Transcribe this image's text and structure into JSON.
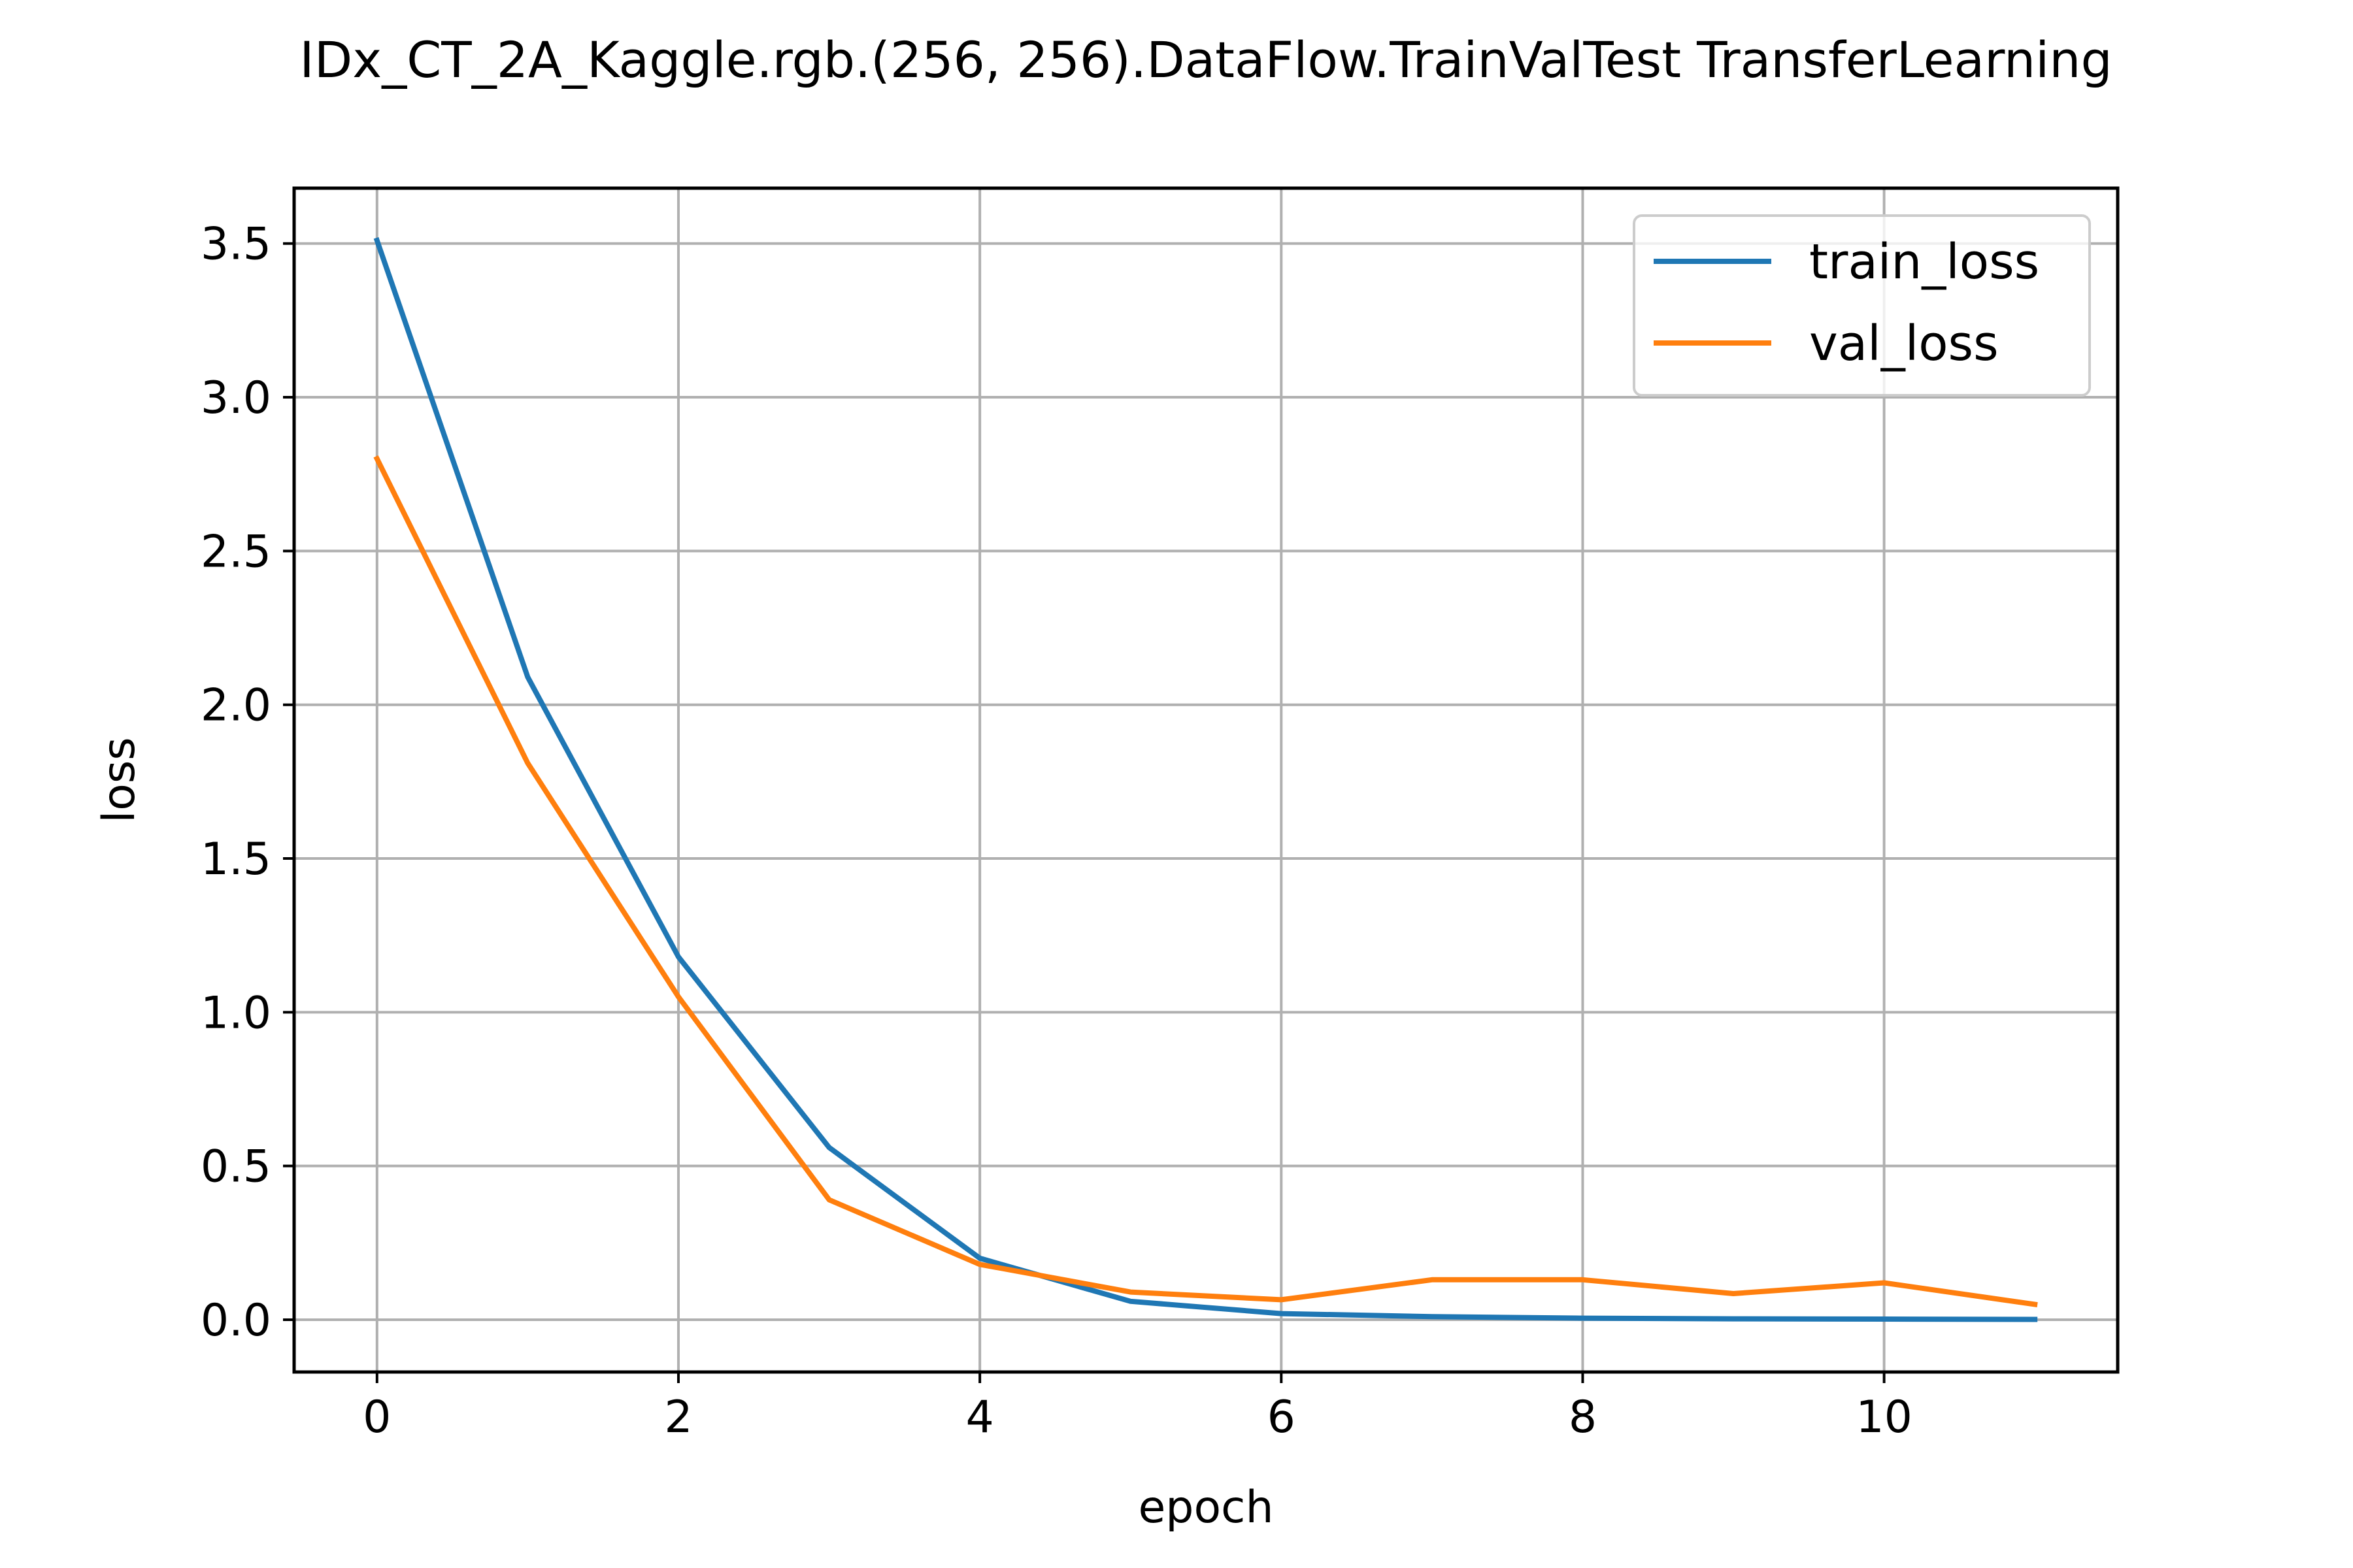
{
  "chart_data": {
    "type": "line",
    "title": "IDx_CT_2A_Kaggle.rgb.(256, 256).DataFlow.TrainValTest TransferLearning",
    "xlabel": "epoch",
    "ylabel": "loss",
    "x": [
      0,
      1,
      2,
      3,
      4,
      5,
      6,
      7,
      8,
      9,
      10,
      11
    ],
    "xlim": [
      -0.55,
      11.55
    ],
    "ylim": [
      -0.17,
      3.68
    ],
    "xticks": [
      0,
      2,
      4,
      6,
      8,
      10
    ],
    "yticks": [
      0.0,
      0.5,
      1.0,
      1.5,
      2.0,
      2.5,
      3.0,
      3.5
    ],
    "xtick_labels": [
      "0",
      "2",
      "4",
      "6",
      "8",
      "10"
    ],
    "ytick_labels": [
      "0.0",
      "0.5",
      "1.0",
      "1.5",
      "2.0",
      "2.5",
      "3.0",
      "3.5"
    ],
    "grid": true,
    "legend_position": "top-right",
    "series": [
      {
        "name": "train_loss",
        "color": "#1f77b4",
        "values": [
          3.51,
          2.09,
          1.18,
          0.56,
          0.2,
          0.06,
          0.02,
          0.01,
          0.005,
          0.003,
          0.002,
          0.001
        ]
      },
      {
        "name": "val_loss",
        "color": "#ff7f0e",
        "values": [
          2.8,
          1.81,
          1.05,
          0.39,
          0.18,
          0.09,
          0.065,
          0.13,
          0.13,
          0.085,
          0.12,
          0.05
        ]
      }
    ]
  }
}
